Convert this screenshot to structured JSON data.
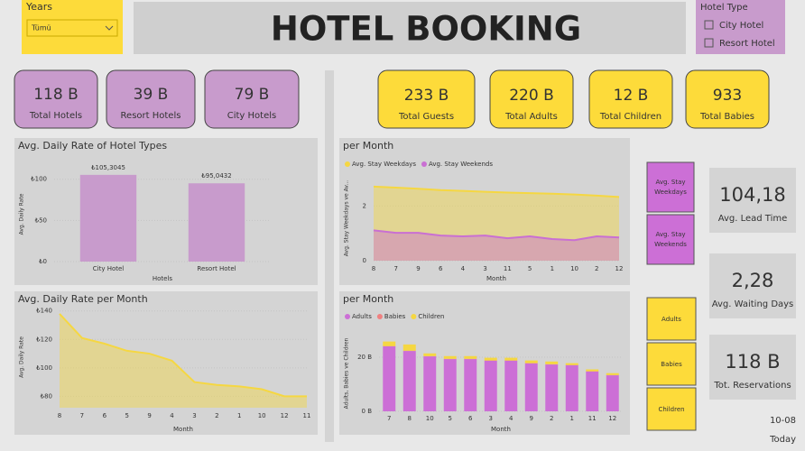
{
  "filter": {
    "title": "Years",
    "value": "Tümü"
  },
  "header": {
    "title": "HOTEL BOOKING"
  },
  "hotel_type": {
    "title": "Hotel Type",
    "options": [
      "City Hotel",
      "Resort Hotel"
    ]
  },
  "kpis_left": [
    {
      "value": "118 B",
      "label": "Total Hotels"
    },
    {
      "value": "39 B",
      "label": "Resort Hotels"
    },
    {
      "value": "79 B",
      "label": "City Hotels"
    }
  ],
  "kpis_right": [
    {
      "value": "233 B",
      "label": "Total Guests"
    },
    {
      "value": "220 B",
      "label": "Total Adults"
    },
    {
      "value": "12 B",
      "label": "Total Children"
    },
    {
      "value": "933",
      "label": "Total Babies"
    }
  ],
  "stay_buttons": [
    "Avg. Stay Weekdays",
    "Avg. Stay Weekends"
  ],
  "guest_buttons": [
    "Adults",
    "Babies",
    "Children"
  ],
  "cards": [
    {
      "value": "104,18",
      "label": "Avg. Lead Time"
    },
    {
      "value": "2,28",
      "label": "Avg. Waiting Days"
    },
    {
      "value": "118 B",
      "label": "Tot. Reservations"
    }
  ],
  "footer": {
    "date": "10-08",
    "label": "Today"
  },
  "chart_data": [
    {
      "type": "bar",
      "title": "Avg. Daily Rate of Hotel Types",
      "x_label": "Hotels",
      "y_label": "Avg. Daily Rate",
      "color": "#c89bcc",
      "categories": [
        "City Hotel",
        "Resort Hotel"
      ],
      "values": [
        105.3045,
        95.0432
      ],
      "value_labels": [
        "₺105,3045",
        "₺95,0432"
      ],
      "ylim": [
        0,
        115
      ],
      "yticks": [
        {
          "value": 0,
          "label": "₺0"
        },
        {
          "value": 50,
          "label": "₺50"
        },
        {
          "value": 100,
          "label": "₺100"
        }
      ]
    },
    {
      "type": "area",
      "title": "Avg. Daily Rate per Month",
      "x_label": "Month",
      "y_label": "Avg. Daily Rate",
      "categories": [
        "8",
        "7",
        "6",
        "5",
        "9",
        "4",
        "3",
        "2",
        "1",
        "10",
        "12",
        "11"
      ],
      "series": [
        {
          "color": "#f5d742",
          "values": [
            138,
            121,
            117,
            112,
            110,
            105,
            90,
            88,
            87,
            85,
            80,
            80
          ]
        }
      ],
      "ylim": [
        72,
        143
      ],
      "yticks": [
        {
          "value": 80,
          "label": "₺80"
        },
        {
          "value": 100,
          "label": "₺100"
        },
        {
          "value": 120,
          "label": "₺120"
        },
        {
          "value": 140,
          "label": "₺140"
        }
      ]
    },
    {
      "type": "area",
      "title": "per Month",
      "x_label": "Month",
      "y_label": "Avg. Stay Weekdays ve Av...",
      "categories": [
        "8",
        "7",
        "9",
        "6",
        "4",
        "3",
        "11",
        "5",
        "1",
        "10",
        "2",
        "12"
      ],
      "series": [
        {
          "name": "Avg. Stay Weekdays",
          "color": "#f5d742",
          "values": [
            2.71,
            2.67,
            2.63,
            2.58,
            2.55,
            2.52,
            2.49,
            2.47,
            2.45,
            2.42,
            2.38,
            2.33
          ]
        },
        {
          "name": "Avg. Stay Weekends",
          "color": "#c96fd3",
          "values": [
            1.11,
            1.02,
            1.02,
            0.92,
            0.89,
            0.92,
            0.82,
            0.89,
            0.79,
            0.75,
            0.89,
            0.85
          ]
        }
      ],
      "ylim": [
        0,
        3.1
      ],
      "yticks": [
        0,
        2
      ]
    },
    {
      "type": "stacked_bar",
      "title": "per Month",
      "x_label": "Month",
      "y_label": "Adults, Babies ve Children",
      "categories": [
        "7",
        "8",
        "10",
        "5",
        "6",
        "3",
        "4",
        "9",
        "2",
        "1",
        "11",
        "12"
      ],
      "series": [
        {
          "name": "Adults",
          "color": "#cc6fd6",
          "values": [
            24,
            22.3,
            20.3,
            19.3,
            19.3,
            18.7,
            18.7,
            17.7,
            17.3,
            17,
            14.7,
            13.3
          ]
        },
        {
          "name": "Babies",
          "color": "#f08080",
          "values": [
            0.1,
            0.1,
            0.1,
            0.1,
            0.1,
            0.1,
            0.1,
            0.1,
            0.1,
            0.1,
            0.1,
            0.1
          ]
        },
        {
          "name": "Children",
          "color": "#f5d742",
          "values": [
            1.7,
            2.3,
            1,
            1,
            1,
            1,
            1,
            1,
            1,
            0.7,
            0.7,
            0.7
          ]
        }
      ],
      "ylim": [
        0,
        28
      ],
      "yticks": [
        {
          "value": 0,
          "label": "0 B"
        },
        {
          "value": 20,
          "label": "20 B"
        }
      ]
    }
  ]
}
